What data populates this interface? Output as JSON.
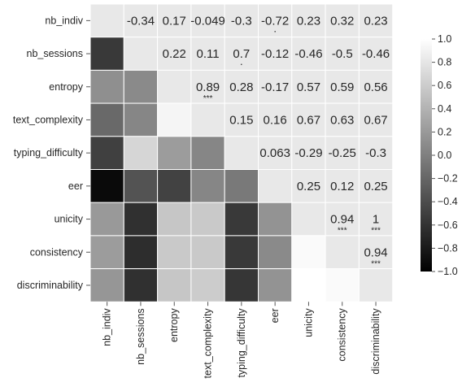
{
  "chart_data": {
    "type": "heatmap",
    "variables": [
      "nb_indiv",
      "nb_sessions",
      "entropy",
      "text_complexity",
      "typing_difficulty",
      "eer",
      "unicity",
      "consistency",
      "discriminability"
    ],
    "upper_labels": [
      [
        "",
        "-0.34",
        "0.17",
        "-0.049",
        "-0.3",
        "-0.72",
        "0.23",
        "0.32",
        "0.23"
      ],
      [
        "",
        "",
        "0.22",
        "0.11",
        "0.7",
        "-0.12",
        "-0.46",
        "-0.5",
        "-0.46"
      ],
      [
        "",
        "",
        "",
        "0.89",
        "0.28",
        "-0.17",
        "0.57",
        "0.59",
        "0.56"
      ],
      [
        "",
        "",
        "",
        "",
        "0.15",
        "0.16",
        "0.67",
        "0.63",
        "0.67"
      ],
      [
        "",
        "",
        "",
        "",
        "",
        "0.063",
        "-0.29",
        "-0.25",
        "-0.3"
      ],
      [
        "",
        "",
        "",
        "",
        "",
        "",
        "0.25",
        "0.12",
        "0.25"
      ],
      [
        "",
        "",
        "",
        "",
        "",
        "",
        "",
        "0.94",
        "1"
      ],
      [
        "",
        "",
        "",
        "",
        "",
        "",
        "",
        "",
        "0.94"
      ],
      [
        "",
        "",
        "",
        "",
        "",
        "",
        "",
        "",
        ""
      ]
    ],
    "significance": [
      [
        "",
        "",
        "",
        "",
        "",
        ".",
        "",
        "",
        ""
      ],
      [
        "",
        "",
        "",
        "",
        ".",
        "",
        "",
        "",
        ""
      ],
      [
        "",
        "",
        "",
        "***",
        "",
        "",
        "",
        "",
        ""
      ],
      [
        "",
        "",
        "",
        "",
        "",
        "",
        "",
        "",
        ""
      ],
      [
        "",
        "",
        "",
        "",
        "",
        "",
        "",
        "",
        ""
      ],
      [
        "",
        "",
        "",
        "",
        "",
        "",
        "",
        "",
        ""
      ],
      [
        "",
        "",
        "",
        "",
        "",
        "",
        "",
        "***",
        "***"
      ],
      [
        "",
        "",
        "",
        "",
        "",
        "",
        "",
        "",
        "***"
      ],
      [
        "",
        "",
        "",
        "",
        "",
        "",
        "",
        "",
        ""
      ]
    ],
    "lower_values": [
      [
        null,
        null,
        null,
        null,
        null,
        null,
        null,
        null,
        null
      ],
      [
        -0.55,
        null,
        null,
        null,
        null,
        null,
        null,
        null,
        null
      ],
      [
        0.12,
        0.08,
        null,
        null,
        null,
        null,
        null,
        null,
        null
      ],
      [
        -0.18,
        0.05,
        0.92,
        null,
        null,
        null,
        null,
        null,
        null
      ],
      [
        -0.5,
        0.68,
        0.22,
        0.05,
        null,
        null,
        null,
        null,
        null
      ],
      [
        -0.92,
        -0.35,
        -0.48,
        0.05,
        -0.05,
        null,
        null,
        null,
        null
      ],
      [
        0.2,
        -0.62,
        0.55,
        0.58,
        -0.55,
        0.15,
        null,
        null,
        null
      ],
      [
        0.22,
        -0.65,
        0.58,
        0.58,
        -0.55,
        0.08,
        0.96,
        null,
        null
      ],
      [
        0.18,
        -0.62,
        0.55,
        0.6,
        -0.58,
        0.15,
        1.0,
        0.96,
        null
      ]
    ],
    "cell_bg_color": "#e8e8e8",
    "gridline_color": "#ffffff",
    "colormap_low": "#000000",
    "colormap_high": "#ffffff",
    "colorbar": {
      "range": [
        -1.0,
        1.0
      ],
      "ticks": [
        "1.0",
        "0.8",
        "0.6",
        "0.4",
        "0.2",
        "0.0",
        "−0.2",
        "−0.4",
        "−0.6",
        "−0.8",
        "−1.0"
      ]
    }
  }
}
